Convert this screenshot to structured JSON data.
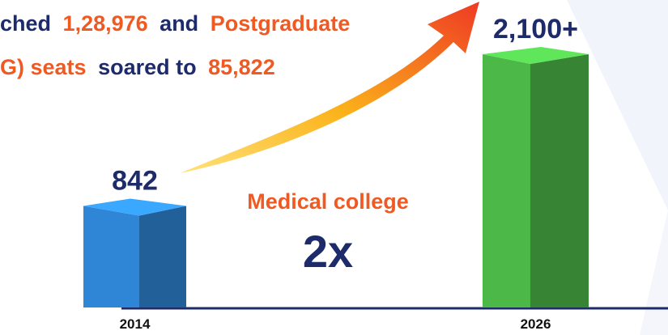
{
  "chart_data": {
    "type": "bar",
    "headline": [
      [
        "ched",
        "1,28,976",
        "and",
        "Postgraduate"
      ],
      [
        "G) seats",
        "soared to",
        "85,822"
      ]
    ],
    "annotation": "Medical college",
    "multiplier": "2x",
    "categories": [
      "2014",
      "2026"
    ],
    "values": [
      842,
      2100
    ],
    "value_labels": [
      "842",
      "2,100+"
    ],
    "colors": [
      "#2f86d6",
      "#4cb848"
    ]
  }
}
